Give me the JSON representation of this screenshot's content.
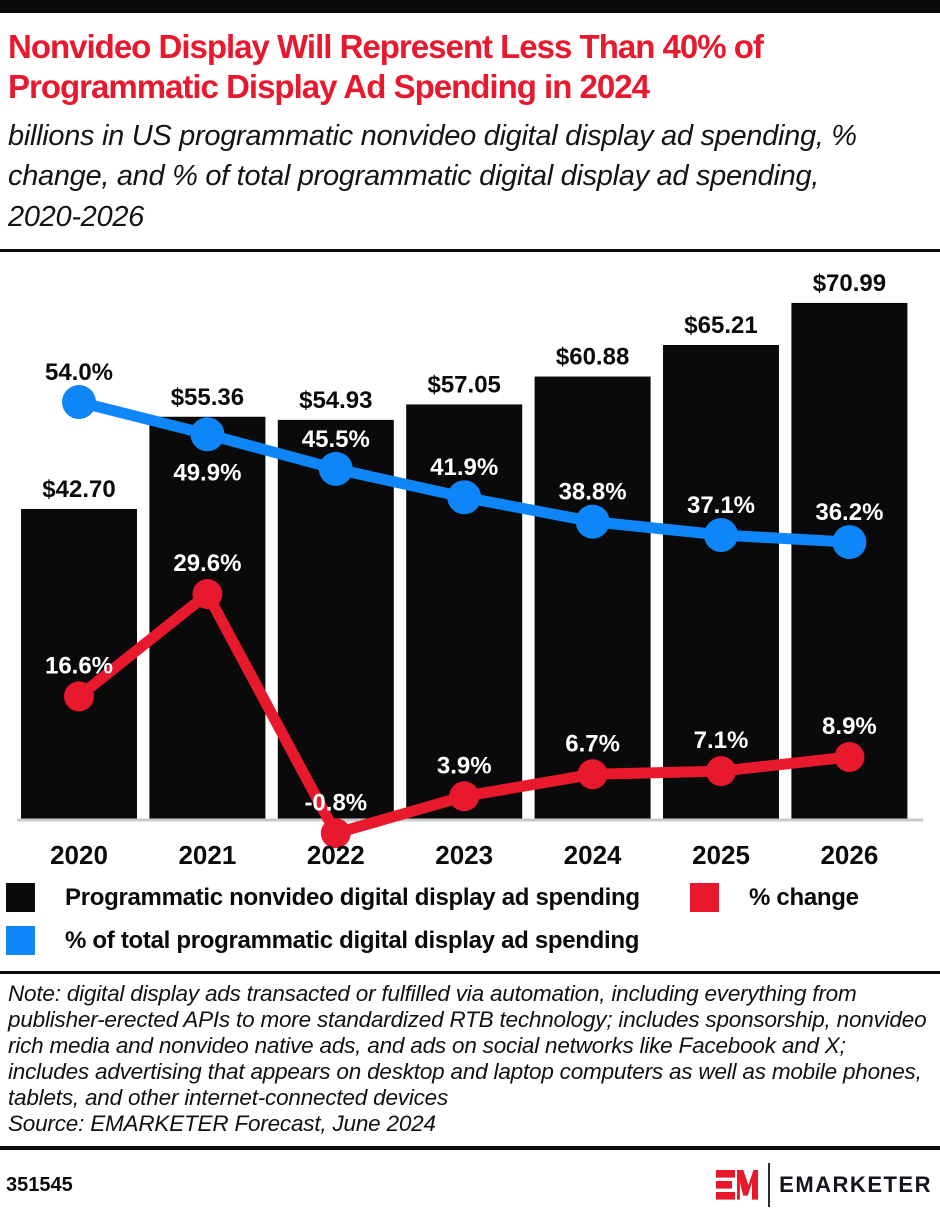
{
  "header": {
    "title": "Nonvideo Display Will Represent Less Than 40% of Programmatic Display Ad Spending in 2024",
    "subtitle": "billions in US programmatic nonvideo digital display ad spending, % change, and % of total programmatic digital display ad spending, 2020-2026"
  },
  "chart_data": {
    "type": "bar+line",
    "categories": [
      "2020",
      "2021",
      "2022",
      "2023",
      "2024",
      "2025",
      "2026"
    ],
    "series": [
      {
        "name": "Programmatic nonvideo digital display ad spending",
        "type": "bar",
        "unit": "billions of US dollars",
        "color": "#0a0a0a",
        "values": [
          42.7,
          55.36,
          54.93,
          57.05,
          60.88,
          65.21,
          70.99
        ],
        "labels": [
          "$42.70",
          "$55.36",
          "$54.93",
          "$57.05",
          "$60.88",
          "$65.21",
          "$70.99"
        ]
      },
      {
        "name": "% change",
        "type": "line",
        "color": "#e8182d",
        "values": [
          16.6,
          29.6,
          -0.8,
          3.9,
          6.7,
          7.1,
          8.9
        ],
        "labels": [
          "16.6%",
          "29.6%",
          "-0.8%",
          "3.9%",
          "6.7%",
          "7.1%",
          "8.9%"
        ]
      },
      {
        "name": "% of total programmatic digital display ad spending",
        "type": "line",
        "color": "#0e86f7",
        "values": [
          54.0,
          49.9,
          45.5,
          41.9,
          38.8,
          37.1,
          36.2
        ],
        "labels": [
          "54.0%",
          "49.9%",
          "45.5%",
          "41.9%",
          "38.8%",
          "37.1%",
          "36.2%"
        ]
      }
    ],
    "ylim": [
      0,
      78
    ],
    "grid": false,
    "legend_position": "bottom",
    "x_axis_line_color": "#c9c9c9"
  },
  "legend": {
    "items": [
      {
        "label": "Programmatic nonvideo digital display ad spending",
        "color": "#0a0a0a"
      },
      {
        "label": "% change",
        "color": "#e8182d"
      },
      {
        "label": "% of total programmatic digital display ad spending",
        "color": "#0e86f7"
      }
    ]
  },
  "note": {
    "text": "Note: digital display ads transacted or fulfilled via automation, including everything from publisher-erected APIs to more standardized RTB technology; includes sponsorship, nonvideo rich media and nonvideo native ads, and ads on social networks like Facebook and X; includes advertising that appears on desktop and laptop computers as well as mobile phones, tablets, and other internet-connected devices",
    "source": "Source: EMARKETER Forecast, June 2024"
  },
  "footer": {
    "chart_id": "351545",
    "brand": "EMARKETER"
  }
}
